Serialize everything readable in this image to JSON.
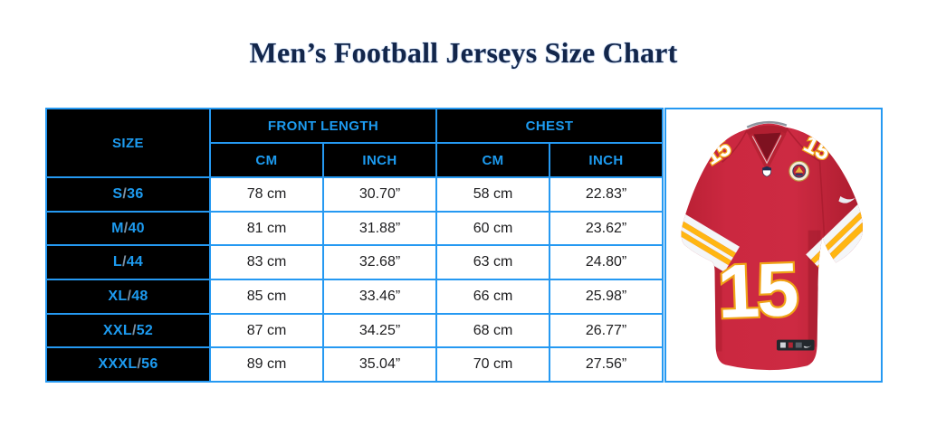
{
  "page": {
    "title": "Men’s Football Jerseys Size Chart"
  },
  "table": {
    "headers": {
      "size": "SIZE",
      "front_length": "FRONT LENGTH",
      "chest": "CHEST",
      "cm": "CM",
      "inch": "INCH"
    },
    "rows": [
      {
        "size": "S/36",
        "front_cm": "78 cm",
        "front_inch": "30.70”",
        "chest_cm": "58 cm",
        "chest_inch": "22.83”"
      },
      {
        "size": "M/40",
        "front_cm": "81 cm",
        "front_inch": "31.88”",
        "chest_cm": "60 cm",
        "chest_inch": "23.62”"
      },
      {
        "size": "L/44",
        "front_cm": "83 cm",
        "front_inch": "32.68”",
        "chest_cm": "63 cm",
        "chest_inch": "24.80”"
      },
      {
        "size": "XL/48",
        "front_cm": "85 cm",
        "front_inch": "33.46”",
        "chest_cm": "66 cm",
        "chest_inch": "25.98”"
      },
      {
        "size": "XXL/52",
        "front_cm": "87 cm",
        "front_inch": "34.25”",
        "chest_cm": "68 cm",
        "chest_inch": "26.77”"
      },
      {
        "size": "XXXL/56",
        "front_cm": "89 cm",
        "front_inch": "35.04”",
        "chest_cm": "70 cm",
        "chest_inch": "27.56”"
      }
    ]
  },
  "jersey": {
    "number": "15",
    "description": "red football jersey"
  },
  "colors": {
    "accent_blue_border": "#2599f2",
    "accent_blue_text": "#1d9bf0",
    "header_bg": "#000000",
    "title_navy": "#13264a",
    "jersey_red": "#c8233a",
    "jersey_gold": "#ffb612"
  }
}
